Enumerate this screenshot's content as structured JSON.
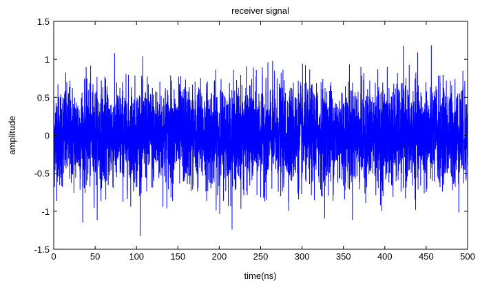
{
  "chart_data": {
    "type": "line",
    "title": "receiver signal",
    "xlabel": "time(ns)",
    "ylabel": "amplitude",
    "xlim": [
      0,
      500
    ],
    "ylim": [
      -1.5,
      1.5
    ],
    "xticks": [
      0,
      50,
      100,
      150,
      200,
      250,
      300,
      350,
      400,
      450,
      500
    ],
    "yticks": [
      -1.5,
      -1,
      -0.5,
      0,
      0.5,
      1,
      1.5
    ],
    "xtick_labels": [
      "0",
      "50",
      "100",
      "150",
      "200",
      "250",
      "300",
      "350",
      "400",
      "450",
      "500"
    ],
    "ytick_labels": [
      "-1.5",
      "-1",
      "-0.5",
      "0",
      "0.5",
      "1",
      "1.5"
    ],
    "grid": false,
    "legend": "none",
    "series_color": "#0000ff",
    "signal": {
      "sample_count": 5000,
      "amplitude_std": 0.33,
      "peak_range": [
        -1.5,
        1.5
      ]
    }
  }
}
